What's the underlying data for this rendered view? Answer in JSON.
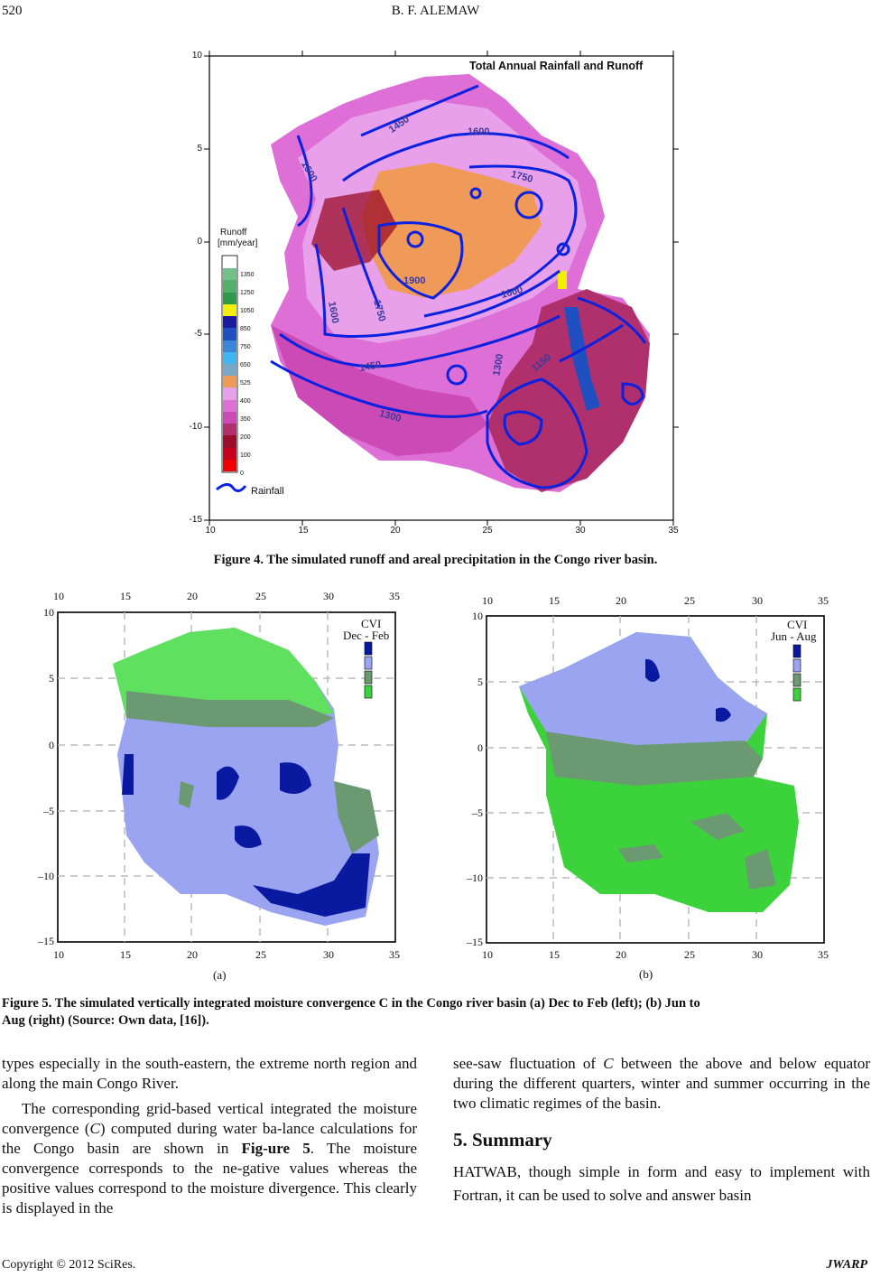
{
  "header": {
    "page_number": "520",
    "running_title": "B. F. ALEMAW"
  },
  "figure4": {
    "title": "Total Annual Rainfall and Runoff",
    "x_ticks": [
      "10",
      "15",
      "20",
      "25",
      "30",
      "35"
    ],
    "y_ticks": [
      "10",
      "5",
      "0",
      "-5",
      "-10",
      "-15"
    ],
    "legend_title_1": "Runoff",
    "legend_title_2": "[mm/year]",
    "legend_labels": [
      "1350",
      "1250",
      "1050",
      "850",
      "750",
      "650",
      "525",
      "400",
      "350",
      "200",
      "100",
      "0"
    ],
    "legend_colors": [
      "#ffffff",
      "#74c08a",
      "#52b06a",
      "#2f9a4a",
      "#f0f000",
      "#1a1aa0",
      "#1f4fc0",
      "#3a86d8",
      "#3fb6f0",
      "#7aa7c8",
      "#f09a5a",
      "#e9a0ea",
      "#dd6fd6",
      "#cc4ab5",
      "#b0306e",
      "#9b0e2a",
      "#c8001f",
      "#f00000"
    ],
    "contour_labels": [
      "1450",
      "1600",
      "1600",
      "1750",
      "1900",
      "1750",
      "1600",
      "1600",
      "1450",
      "1300",
      "1300",
      "1150"
    ],
    "rainfall_label": "Rainfall",
    "caption": "Figure 4. The simulated runoff and areal precipitation in the Congo river basin."
  },
  "figure5": {
    "panels": [
      {
        "id": "a",
        "legend_line1": "CVI",
        "legend_line2": "Dec - Feb",
        "sublabel": "(a)"
      },
      {
        "id": "b",
        "legend_line1": "CVI",
        "legend_line2": "Jun - Aug",
        "sublabel": "(b)"
      }
    ],
    "x_ticks": [
      "10",
      "15",
      "20",
      "25",
      "30",
      "35"
    ],
    "y_ticks": [
      "10",
      "5",
      "0",
      "–5",
      "–10",
      "–15"
    ],
    "legend_colors": [
      "#0a1aa0",
      "#9aa4f0",
      "#6b9a72",
      "#3cd23c"
    ],
    "caption_line1": "Figure 5. The simulated vertically integrated moisture convergence C in the Congo river basin (a) Dec to Feb (left); (b) Jun to",
    "caption_line2": "Aug (right) (Source: Own data, [16])."
  },
  "left_column": {
    "p1": "types especially in the south-eastern, the extreme north region and along the main Congo River.",
    "p2_a": "The corresponding grid-based vertical integrated the moisture convergence (",
    "p2_c": "C",
    "p2_b": ") computed during water ba-lance calculations for the Congo basin are shown in ",
    "p2_fig": "Fig-ure 5",
    "p2_rest": ". The moisture convergence corresponds to the ne-gative values whereas the positive values correspond to the moisture divergence. This clearly is displayed in the"
  },
  "right_column": {
    "p1_a": "see-saw fluctuation of ",
    "p1_c": "C",
    "p1_b": " between the above and below equator during the different quarters, winter and summer occurring in the two climatic regimes of the basin.",
    "section_title": "5. Summary",
    "p2": "HATWAB, though simple in form and easy to implement with Fortran, it can be used to solve and answer basin"
  },
  "footer": {
    "copyright": "Copyright © 2012 SciRes.",
    "journal": "JWARP"
  }
}
